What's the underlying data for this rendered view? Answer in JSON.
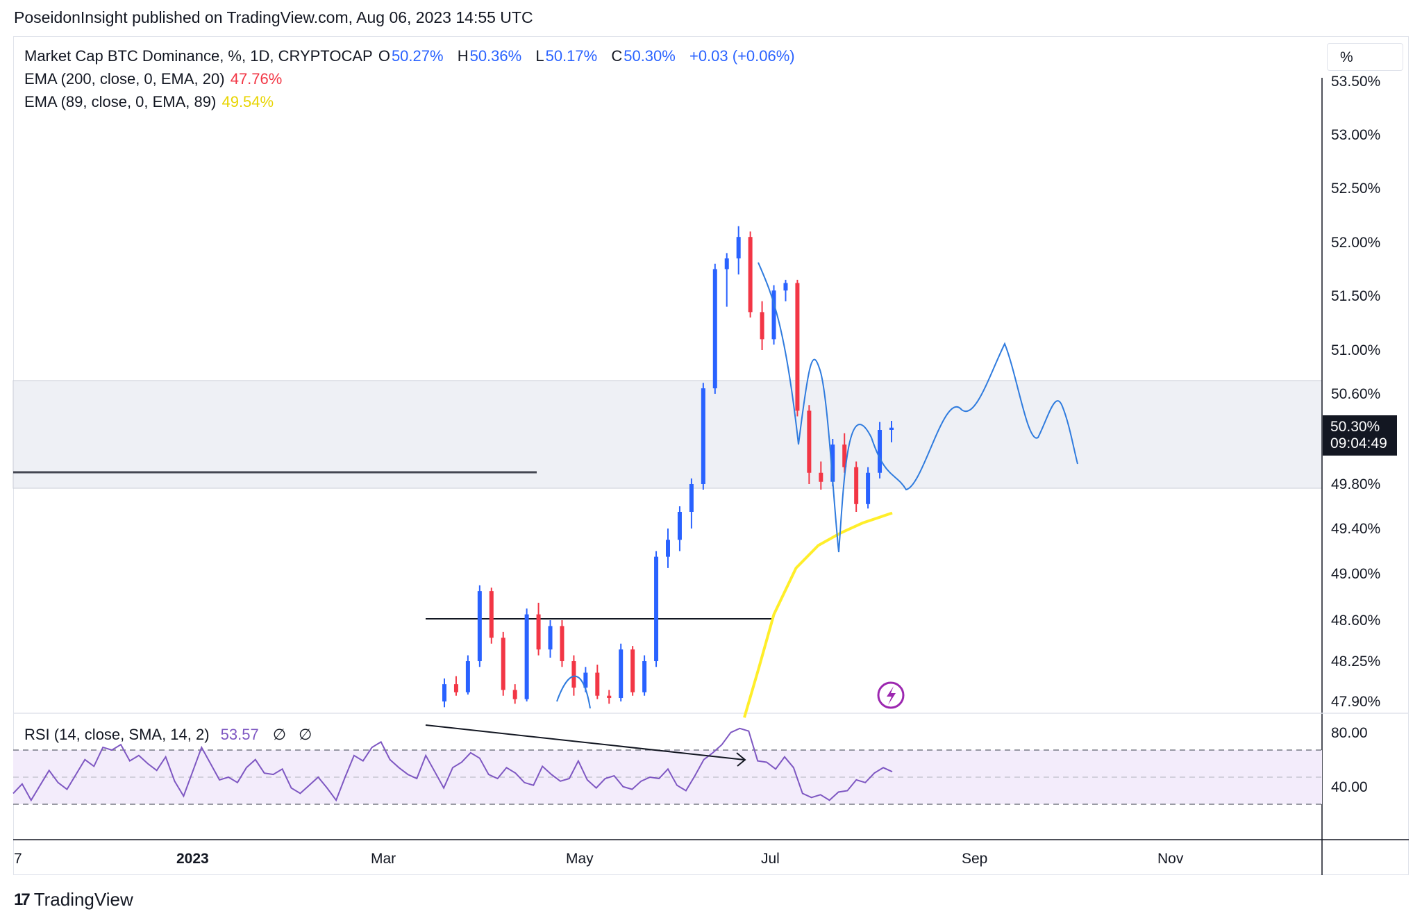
{
  "publish_line": "PoseidonInsight published on TradingView.com, Aug 06, 2023 14:55 UTC",
  "legend": {
    "symbol": "Market Cap BTC Dominance, %, 1D, CRYPTOCAP",
    "ohlc": [
      {
        "k": "O",
        "v": "50.27%"
      },
      {
        "k": "H",
        "v": "50.36%"
      },
      {
        "k": "L",
        "v": "50.17%"
      },
      {
        "k": "C",
        "v": "50.30%"
      }
    ],
    "change": "+0.03 (+0.06%)",
    "ema200_label": "EMA (200, close, 0, EMA, 20)",
    "ema200_value": "47.76%",
    "ema89_label": "EMA (89, close, 0, EMA, 89)",
    "ema89_value": "49.54%"
  },
  "rsi_legend": {
    "label": "RSI (14, close, SMA, 14, 2)",
    "value": "53.57",
    "na1": "∅",
    "na2": "∅"
  },
  "unit_button": "%",
  "last_price": {
    "value": "50.30%",
    "countdown": "09:04:49"
  },
  "logo_text": "TradingView",
  "colors": {
    "up": "#2962ff",
    "down": "#f23645",
    "ema200": "#f23645",
    "ema89": "#ffeb3b",
    "ema89_line": "#ffee2a",
    "rsi": "#7e57c2",
    "rsi_band": "#f3ecfb",
    "zone": "#eef0f5",
    "projection": "#2f7bde",
    "axis_text": "#131722",
    "lightning": "#9c27b0"
  },
  "chart_data": [
    {
      "type": "candlestick",
      "title": "Market Cap BTC Dominance, %, 1D, CRYPTOCAP",
      "y_axis_ticks": [
        "53.50%",
        "53.00%",
        "52.50%",
        "52.00%",
        "51.50%",
        "51.00%",
        "50.60%",
        "49.80%",
        "49.40%",
        "49.00%",
        "48.60%",
        "48.25%",
        "47.90%"
      ],
      "y_tick_values": [
        53.5,
        53.0,
        52.5,
        52.0,
        51.5,
        51.0,
        50.6,
        49.8,
        49.4,
        49.0,
        48.6,
        48.25,
        47.9
      ],
      "x_axis_ticks": [
        "7",
        "2023",
        "Mar",
        "May",
        "Jul",
        "Sep",
        "Nov"
      ],
      "ylim": [
        47.8,
        53.55
      ],
      "grid": false,
      "series": [
        {
          "name": "Market Cap BTC Dominance",
          "type": "candles",
          "points": [
            [
              47.9,
              48.1,
              47.85,
              48.05
            ],
            [
              48.05,
              48.12,
              47.95,
              47.98
            ],
            [
              47.98,
              48.3,
              47.96,
              48.25
            ],
            [
              48.25,
              48.9,
              48.2,
              48.85
            ],
            [
              48.85,
              48.88,
              48.4,
              48.45
            ],
            [
              48.45,
              48.5,
              47.95,
              48.0
            ],
            [
              48.0,
              48.05,
              47.88,
              47.92
            ],
            [
              47.92,
              48.7,
              47.9,
              48.65
            ],
            [
              48.65,
              48.75,
              48.3,
              48.35
            ],
            [
              48.35,
              48.6,
              48.28,
              48.55
            ],
            [
              48.55,
              48.6,
              48.2,
              48.25
            ],
            [
              48.25,
              48.3,
              47.95,
              48.02
            ],
            [
              48.02,
              48.2,
              47.98,
              48.15
            ],
            [
              48.15,
              48.22,
              47.92,
              47.95
            ],
            [
              47.95,
              48.0,
              47.88,
              47.93
            ],
            [
              47.93,
              48.4,
              47.9,
              48.35
            ],
            [
              48.35,
              48.38,
              47.95,
              47.98
            ],
            [
              47.98,
              48.3,
              47.95,
              48.25
            ],
            [
              48.25,
              49.2,
              48.2,
              49.15
            ],
            [
              49.15,
              49.4,
              49.05,
              49.3
            ],
            [
              49.3,
              49.6,
              49.2,
              49.55
            ],
            [
              49.55,
              49.85,
              49.4,
              49.8
            ],
            [
              49.8,
              50.7,
              49.75,
              50.65
            ],
            [
              50.65,
              51.8,
              50.6,
              51.75
            ],
            [
              51.75,
              51.9,
              51.4,
              51.85
            ],
            [
              51.85,
              52.15,
              51.7,
              52.05
            ],
            [
              52.05,
              52.1,
              51.3,
              51.35
            ],
            [
              51.35,
              51.45,
              51.0,
              51.1
            ],
            [
              51.1,
              51.6,
              51.05,
              51.55
            ],
            [
              51.55,
              51.65,
              51.45,
              51.62
            ],
            [
              51.62,
              51.65,
              50.4,
              50.45
            ],
            [
              50.45,
              50.5,
              49.8,
              49.9
            ],
            [
              49.9,
              50.0,
              49.75,
              49.82
            ],
            [
              49.82,
              50.2,
              49.78,
              50.15
            ],
            [
              50.15,
              50.25,
              49.9,
              49.95
            ],
            [
              49.95,
              50.0,
              49.55,
              49.62
            ],
            [
              49.62,
              49.95,
              49.58,
              49.9
            ],
            [
              49.9,
              50.35,
              49.85,
              50.28
            ],
            [
              50.28,
              50.36,
              50.17,
              50.3
            ]
          ]
        },
        {
          "name": "EMA (200, close, 0, EMA, 20)",
          "value": "47.76%"
        },
        {
          "name": "EMA (89, close, 0, EMA, 89)",
          "x": [
            0.0,
            0.1,
            0.2,
            0.35,
            0.5,
            0.65,
            0.8,
            1.0
          ],
          "values": [
            47.76,
            48.2,
            48.65,
            49.05,
            49.25,
            49.36,
            49.45,
            49.54
          ]
        }
      ],
      "horizontal_levels": [
        50.0,
        48.6
      ],
      "zone": [
        49.8,
        50.65
      ]
    },
    {
      "type": "line",
      "title": "RSI (14, close, SMA, 14, 2)",
      "y_axis_ticks": [
        "80.00",
        "40.00"
      ],
      "bands": [
        30,
        50,
        70
      ],
      "series": [
        {
          "name": "RSI (14, close, SMA, 14, 2)",
          "values": [
            38,
            45,
            33,
            44,
            55,
            46,
            41,
            52,
            63,
            58,
            72,
            70,
            74,
            62,
            66,
            60,
            55,
            65,
            47,
            36,
            54,
            72,
            60,
            48,
            50,
            46,
            57,
            63,
            53,
            52,
            56,
            42,
            38,
            44,
            50,
            42,
            33,
            50,
            66,
            62,
            72,
            76,
            63,
            57,
            52,
            49,
            66,
            54,
            42,
            57,
            61,
            68,
            64,
            52,
            49,
            57,
            53,
            46,
            44,
            58,
            52,
            47,
            49,
            62,
            48,
            42,
            49,
            51,
            43,
            41,
            47,
            50,
            49,
            56,
            44,
            40,
            51,
            63,
            68,
            74,
            83,
            86,
            84,
            62,
            61,
            56,
            65,
            57,
            38,
            35,
            37,
            33,
            39,
            40,
            48,
            46,
            53,
            57,
            54
          ]
        }
      ]
    }
  ]
}
